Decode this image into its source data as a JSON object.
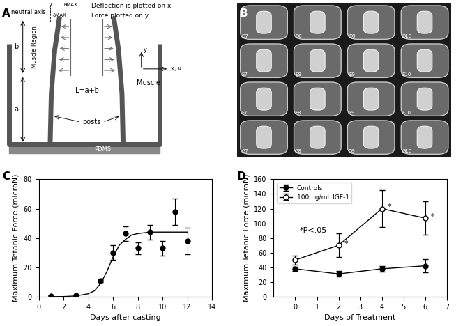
{
  "chart_data": [
    {
      "panel": "C",
      "type": "scatter",
      "x_label": "Days after casting",
      "y_label": "Maximum Tetanic Force (microN)",
      "xlim": [
        0,
        14
      ],
      "xticks": [
        0,
        2,
        4,
        6,
        8,
        10,
        12,
        14
      ],
      "ylim": [
        0,
        80
      ],
      "yticks": [
        0,
        20,
        40,
        60,
        80
      ],
      "series": [
        {
          "type": "scatter",
          "color": "#000000",
          "marker": "o",
          "x": [
            1,
            3,
            5,
            6,
            7,
            8,
            9,
            10,
            11,
            12
          ],
          "values": [
            0.5,
            1,
            11,
            30,
            43,
            33,
            44,
            33,
            58,
            38
          ],
          "error": [
            0.5,
            0.5,
            1,
            5,
            5,
            4,
            5,
            5,
            9,
            9
          ]
        },
        {
          "type": "line",
          "color": "#000000",
          "line_style": "solid",
          "x": [
            1,
            2,
            3,
            4,
            4.5,
            5,
            5.5,
            6,
            6.5,
            7,
            7.5,
            8,
            9,
            10,
            11,
            12
          ],
          "values": [
            0,
            0.1,
            0.5,
            2,
            4,
            9,
            17,
            27,
            35,
            39,
            42,
            43,
            44,
            44,
            44,
            44
          ]
        }
      ]
    },
    {
      "panel": "D",
      "type": "line",
      "x_label": "Days of Treatment",
      "y_label": "Maximum Tetanic Force (microN)",
      "xlim": [
        -1,
        7
      ],
      "xticks": [
        0,
        1,
        2,
        3,
        4,
        5,
        6,
        7
      ],
      "ylim": [
        0,
        160
      ],
      "yticks": [
        0,
        20,
        40,
        60,
        80,
        100,
        120,
        140,
        160
      ],
      "legend": "upper left",
      "series": [
        {
          "name": "Controls",
          "color": "#000000",
          "marker": "o",
          "x": [
            0,
            2,
            4,
            6
          ],
          "values": [
            38,
            31,
            38,
            42
          ],
          "error": [
            3,
            4,
            4,
            9
          ]
        },
        {
          "name": "100 ng/mL IGF-1",
          "color": "#000000",
          "marker": "open",
          "x": [
            0,
            2,
            4,
            6
          ],
          "values": [
            50,
            70,
            120,
            107
          ],
          "error": [
            6,
            16,
            25,
            23
          ]
        }
      ],
      "annotations": [
        {
          "text": "*P<.05",
          "x": 0.2,
          "y": 90
        },
        {
          "text": "*",
          "x": 2.25,
          "y": 72
        },
        {
          "text": "*",
          "x": 4.25,
          "y": 122
        },
        {
          "text": "*",
          "x": 6.25,
          "y": 109
        }
      ]
    }
  ],
  "diagram": {
    "panel": "A",
    "texts": {
      "axis_y": "y",
      "neutral_axis": "neutral axis",
      "delta": "δMAX",
      "theta": "θMAX",
      "deflection": "Deflection is plotted on x",
      "force": "Force plotted on y",
      "b": "b",
      "muscle_region": "Muscle Region",
      "a": "a",
      "length": "L=a+b",
      "posts": "posts",
      "coord_y": "y",
      "coord_x": "x, ν",
      "muscle": "Muscle",
      "base": "PDMS"
    }
  },
  "photo": {
    "panel": "B",
    "wells": [
      [
        "D7",
        "D8",
        "D9",
        "D10"
      ],
      [
        "E7",
        "E8",
        "E9",
        "E10"
      ],
      [
        "F7",
        "F8",
        "F9",
        "F10"
      ],
      [
        "G7",
        "G8",
        "G9",
        "G10"
      ]
    ]
  }
}
